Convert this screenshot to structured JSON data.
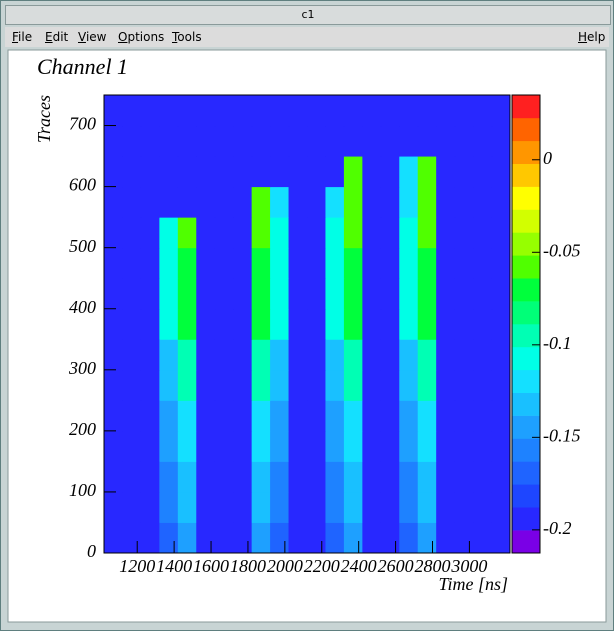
{
  "window": {
    "title": "c1",
    "menu": [
      "File",
      "Edit",
      "View",
      "Options",
      "Tools"
    ],
    "help": "Help"
  },
  "chart_data": {
    "type": "heatmap",
    "title": "Channel 1",
    "x_label": "Time [ns]",
    "y_label": "Traces",
    "xlim": [
      1020,
      3220
    ],
    "xticks": [
      1200,
      1400,
      1600,
      1800,
      2000,
      2200,
      2400,
      2600,
      2800,
      3000
    ],
    "ylim": [
      0,
      750
    ],
    "yticks": [
      0,
      100,
      200,
      300,
      400,
      500,
      600,
      700
    ],
    "zlim": [
      -0.2125,
      0.035
    ],
    "zticks": [
      0,
      -0.05,
      -0.1,
      -0.15,
      -0.2
    ],
    "palette": [
      "#7a00e6",
      "#2828ff",
      "#1e46ff",
      "#1f64ff",
      "#1e82ff",
      "#1ea0ff",
      "#19c0ff",
      "#14e0ff",
      "#00ffe6",
      "#00ffb4",
      "#00ff78",
      "#00ff3c",
      "#50ff00",
      "#96ff00",
      "#d2ff00",
      "#ffff00",
      "#ffc800",
      "#ff9600",
      "#ff6400",
      "#ff2020"
    ],
    "xbins": [
      1020,
      1120,
      1220,
      1320,
      1420,
      1520,
      1620,
      1720,
      1820,
      1920,
      2020,
      2120,
      2220,
      2320,
      2420,
      2520,
      2620,
      2720,
      2820,
      2920,
      3020,
      3120,
      3220
    ],
    "ybins": [
      0,
      50,
      100,
      150,
      200,
      250,
      300,
      350,
      400,
      450,
      500,
      550,
      600,
      650,
      700,
      750
    ],
    "z": [
      [
        -0.19,
        -0.19,
        -0.19,
        -0.17,
        -0.14,
        -0.19,
        -0.19,
        -0.19,
        -0.14,
        -0.17,
        -0.19,
        -0.19,
        -0.17,
        -0.14,
        -0.19,
        -0.19,
        -0.17,
        -0.14,
        -0.19,
        -0.19,
        -0.19,
        -0.19
      ],
      [
        -0.2,
        -0.2,
        -0.2,
        -0.16,
        -0.13,
        -0.2,
        -0.2,
        -0.2,
        -0.13,
        -0.16,
        -0.2,
        -0.2,
        -0.16,
        -0.13,
        -0.2,
        -0.2,
        -0.16,
        -0.13,
        -0.2,
        -0.2,
        -0.2,
        -0.2
      ],
      [
        -0.2,
        -0.2,
        -0.2,
        -0.16,
        -0.13,
        -0.2,
        -0.2,
        -0.2,
        -0.13,
        -0.16,
        -0.2,
        -0.2,
        -0.16,
        -0.13,
        -0.2,
        -0.2,
        -0.16,
        -0.13,
        -0.2,
        -0.2,
        -0.2,
        -0.2
      ],
      [
        -0.2,
        -0.2,
        -0.2,
        -0.15,
        -0.12,
        -0.2,
        -0.2,
        -0.2,
        -0.12,
        -0.15,
        -0.2,
        -0.2,
        -0.15,
        -0.12,
        -0.2,
        -0.2,
        -0.15,
        -0.12,
        -0.2,
        -0.2,
        -0.2,
        -0.2
      ],
      [
        -0.2,
        -0.2,
        -0.2,
        -0.15,
        -0.12,
        -0.2,
        -0.2,
        -0.2,
        -0.12,
        -0.15,
        -0.2,
        -0.2,
        -0.15,
        -0.12,
        -0.2,
        -0.2,
        -0.15,
        -0.12,
        -0.2,
        -0.2,
        -0.2,
        -0.2
      ],
      [
        -0.2,
        -0.2,
        -0.2,
        -0.13,
        -0.09,
        -0.2,
        -0.2,
        -0.2,
        -0.09,
        -0.13,
        -0.2,
        -0.2,
        -0.13,
        -0.09,
        -0.2,
        -0.2,
        -0.13,
        -0.09,
        -0.2,
        -0.2,
        -0.2,
        -0.2
      ],
      [
        -0.2,
        -0.2,
        -0.2,
        -0.13,
        -0.09,
        -0.2,
        -0.2,
        -0.2,
        -0.09,
        -0.13,
        -0.2,
        -0.2,
        -0.13,
        -0.09,
        -0.2,
        -0.2,
        -0.13,
        -0.09,
        -0.2,
        -0.2,
        -0.2,
        -0.2
      ],
      [
        -0.2,
        -0.2,
        -0.2,
        -0.11,
        -0.07,
        -0.2,
        -0.2,
        -0.2,
        -0.07,
        -0.11,
        -0.2,
        -0.2,
        -0.11,
        -0.07,
        -0.2,
        -0.2,
        -0.11,
        -0.07,
        -0.2,
        -0.2,
        -0.2,
        -0.2
      ],
      [
        -0.2,
        -0.2,
        -0.2,
        -0.11,
        -0.07,
        -0.2,
        -0.2,
        -0.2,
        -0.07,
        -0.11,
        -0.2,
        -0.2,
        -0.11,
        -0.07,
        -0.2,
        -0.2,
        -0.11,
        -0.07,
        -0.2,
        -0.2,
        -0.2,
        -0.2
      ],
      [
        -0.2,
        -0.2,
        -0.2,
        -0.11,
        -0.07,
        -0.2,
        -0.2,
        -0.2,
        -0.07,
        -0.11,
        -0.2,
        -0.2,
        -0.11,
        -0.07,
        -0.2,
        -0.2,
        -0.11,
        -0.07,
        -0.2,
        -0.2,
        -0.2,
        -0.2
      ],
      [
        -0.2,
        -0.2,
        -0.2,
        -0.11,
        -0.06,
        -0.2,
        -0.2,
        -0.2,
        -0.06,
        -0.11,
        -0.2,
        -0.2,
        -0.11,
        -0.06,
        -0.2,
        -0.2,
        -0.11,
        -0.06,
        -0.2,
        -0.2,
        -0.2,
        -0.2
      ],
      [
        -0.2,
        -0.2,
        -0.2,
        -0.2,
        -0.2,
        -0.2,
        -0.2,
        -0.2,
        -0.06,
        -0.12,
        -0.2,
        -0.2,
        -0.12,
        -0.06,
        -0.2,
        -0.2,
        -0.12,
        -0.06,
        -0.2,
        -0.2,
        -0.2,
        -0.2
      ],
      [
        -0.2,
        -0.2,
        -0.2,
        -0.2,
        -0.2,
        -0.2,
        -0.2,
        -0.2,
        -0.2,
        -0.2,
        -0.2,
        -0.2,
        -0.2,
        -0.06,
        -0.2,
        -0.2,
        -0.12,
        -0.06,
        -0.2,
        -0.2,
        -0.2,
        -0.2
      ],
      [
        -0.2,
        -0.2,
        -0.2,
        -0.2,
        -0.2,
        -0.2,
        -0.2,
        -0.2,
        -0.2,
        -0.2,
        -0.2,
        -0.2,
        -0.2,
        -0.2,
        -0.2,
        -0.2,
        -0.2,
        -0.2,
        -0.2,
        -0.2,
        -0.2,
        -0.2
      ],
      [
        -0.2,
        -0.2,
        -0.2,
        -0.2,
        -0.2,
        -0.2,
        -0.2,
        -0.2,
        -0.2,
        -0.2,
        -0.2,
        -0.2,
        -0.2,
        -0.2,
        -0.2,
        -0.2,
        -0.2,
        -0.2,
        -0.2,
        -0.2,
        -0.2,
        -0.2
      ]
    ]
  }
}
